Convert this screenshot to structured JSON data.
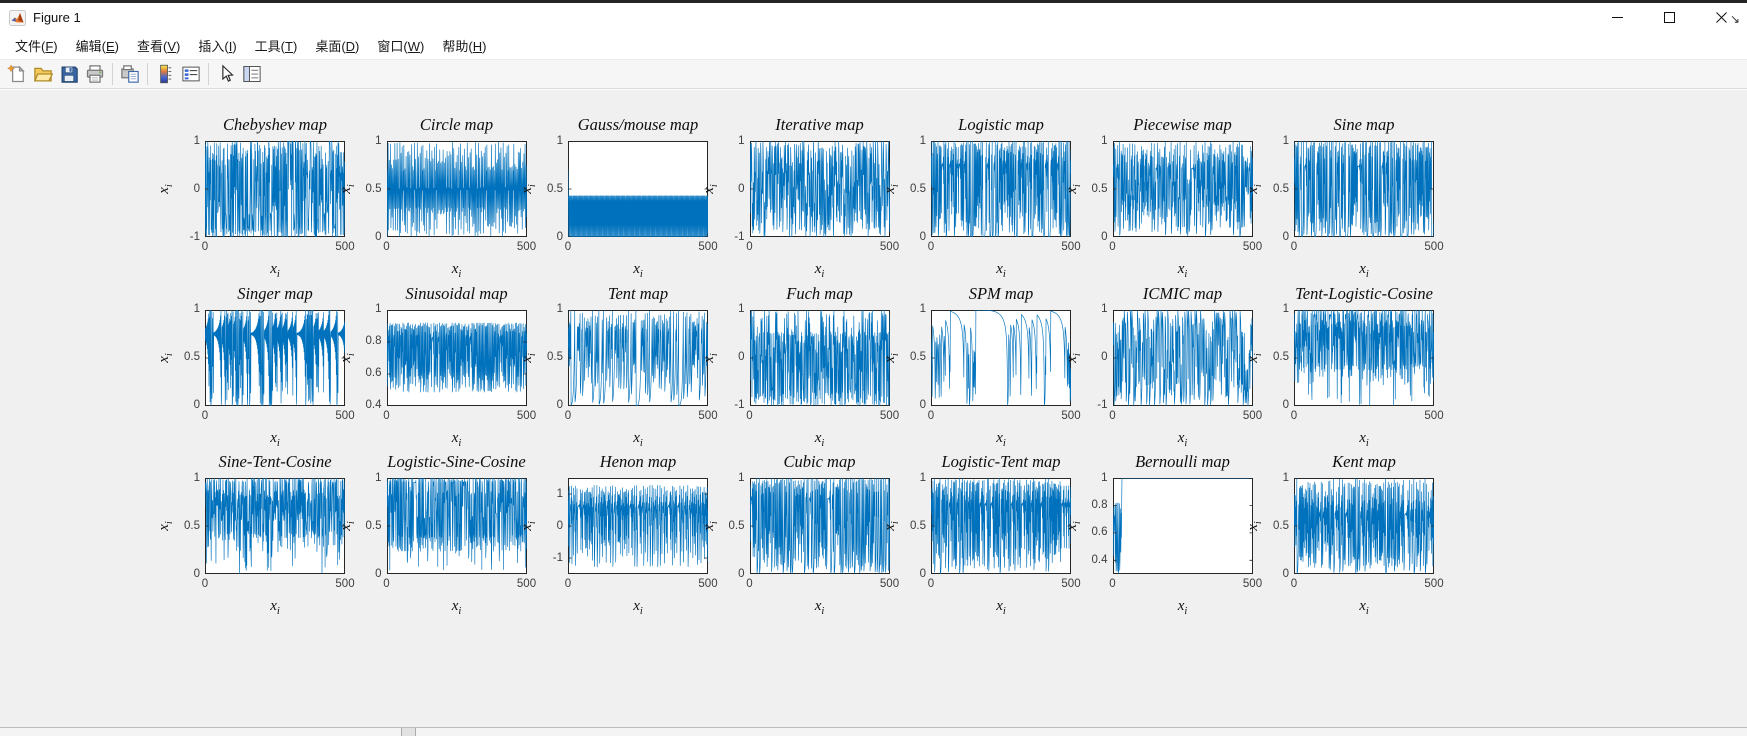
{
  "window": {
    "title": "Figure 1",
    "controls": {
      "minimize": "minimize",
      "maximize": "maximize",
      "close": "close"
    }
  },
  "menu_bar": {
    "items": [
      {
        "id": "file",
        "label": "文件",
        "shortcut": "F"
      },
      {
        "id": "edit",
        "label": "编辑",
        "shortcut": "E"
      },
      {
        "id": "view",
        "label": "查看",
        "shortcut": "V"
      },
      {
        "id": "insert",
        "label": "插入",
        "shortcut": "I"
      },
      {
        "id": "tools",
        "label": "工具",
        "shortcut": "T"
      },
      {
        "id": "desktop",
        "label": "桌面",
        "shortcut": "D"
      },
      {
        "id": "window",
        "label": "窗口",
        "shortcut": "W"
      },
      {
        "id": "help",
        "label": "帮助",
        "shortcut": "H"
      }
    ],
    "overflow_arrow": "↘"
  },
  "toolbar": {
    "groups": [
      [
        "new-figure",
        "open-file",
        "save-figure",
        "print-figure"
      ],
      [
        "print-preview"
      ],
      [
        "insert-colorbar",
        "insert-legend"
      ],
      [
        "edit-plot",
        "show-plot-tools"
      ]
    ]
  },
  "figure": {
    "background": "#f0f0f0",
    "axes_background": "#ffffff",
    "axes_color": "#262626",
    "tick_label_color": "#3d3d3d",
    "line_color": "#0072BD"
  },
  "chart_data": [
    {
      "type": "line",
      "title": "Chebyshev map",
      "x_label": "x_i",
      "y_label": "x_i",
      "xlim": [
        0,
        500
      ],
      "xticks": [
        0,
        500
      ],
      "ylim": [
        -1,
        1
      ],
      "yticks": [
        -1,
        0,
        1
      ],
      "series": {
        "color": "#0072BD",
        "n": 500,
        "generator": "chebyshev",
        "params": {
          "a": 4
        },
        "x0": 0.7
      }
    },
    {
      "type": "line",
      "title": "Circle map",
      "x_label": "x_i",
      "y_label": "x_i",
      "xlim": [
        0,
        500
      ],
      "xticks": [
        0,
        500
      ],
      "ylim": [
        0,
        1
      ],
      "yticks": [
        0,
        0.5,
        1
      ],
      "series": {
        "color": "#0072BD",
        "n": 500,
        "generator": "circle",
        "params": {
          "omega": 0.5,
          "k": 2
        },
        "x0": 0.7
      }
    },
    {
      "type": "line",
      "title": "Gauss/mouse map",
      "x_label": "x_i",
      "y_label": "x_i",
      "xlim": [
        0,
        500
      ],
      "xticks": [
        0,
        500
      ],
      "ylim": [
        0,
        1
      ],
      "yticks": [
        0,
        0.5,
        1
      ],
      "series": {
        "color": "#0072BD",
        "n": 500,
        "generator": "gauss",
        "params": {},
        "x0": 0.7
      }
    },
    {
      "type": "line",
      "title": "Iterative map",
      "x_label": "x_i",
      "y_label": "x_i",
      "xlim": [
        0,
        500
      ],
      "xticks": [
        0,
        500
      ],
      "ylim": [
        -1,
        1
      ],
      "yticks": [
        -1,
        0,
        1
      ],
      "series": {
        "color": "#0072BD",
        "n": 500,
        "generator": "iterative",
        "params": {
          "b": 0.7
        },
        "x0": 0.6
      }
    },
    {
      "type": "line",
      "title": "Logistic map",
      "x_label": "x_i",
      "y_label": "x_i",
      "xlim": [
        0,
        500
      ],
      "xticks": [
        0,
        500
      ],
      "ylim": [
        0,
        1
      ],
      "yticks": [
        0,
        0.5,
        1
      ],
      "series": {
        "color": "#0072BD",
        "n": 500,
        "generator": "logistic",
        "params": {
          "r": 4
        },
        "x0": 0.7
      }
    },
    {
      "type": "line",
      "title": "Piecewise map",
      "x_label": "x_i",
      "y_label": "x_i",
      "xlim": [
        0,
        500
      ],
      "xticks": [
        0,
        500
      ],
      "ylim": [
        0,
        1
      ],
      "yticks": [
        0,
        0.5,
        1
      ],
      "series": {
        "color": "#0072BD",
        "n": 500,
        "generator": "piecewise",
        "params": {
          "P": 0.4
        },
        "x0": 0.7
      }
    },
    {
      "type": "line",
      "title": "Sine map",
      "x_label": "x_i",
      "y_label": "x_i",
      "xlim": [
        0,
        500
      ],
      "xticks": [
        0,
        500
      ],
      "ylim": [
        0,
        1
      ],
      "yticks": [
        0,
        0.5,
        1
      ],
      "series": {
        "color": "#0072BD",
        "n": 500,
        "generator": "sine",
        "params": {},
        "x0": 0.7
      }
    },
    {
      "type": "line",
      "title": "Singer map",
      "x_label": "x_i",
      "y_label": "x_i",
      "xlim": [
        0,
        500
      ],
      "xticks": [
        0,
        500
      ],
      "ylim": [
        0,
        1
      ],
      "yticks": [
        0,
        0.5,
        1
      ],
      "series": {
        "color": "#0072BD",
        "n": 500,
        "generator": "singer",
        "params": {
          "mu": 1.073
        },
        "x0": 0.7
      }
    },
    {
      "type": "line",
      "title": "Sinusoidal map",
      "x_label": "x_i",
      "y_label": "x_i",
      "xlim": [
        0,
        500
      ],
      "xticks": [
        0,
        500
      ],
      "ylim": [
        0.4,
        1
      ],
      "yticks": [
        0.4,
        0.6,
        0.8,
        1
      ],
      "series": {
        "color": "#0072BD",
        "n": 500,
        "generator": "sinusoidal",
        "params": {
          "a": 2.3
        },
        "x0": 0.7
      }
    },
    {
      "type": "line",
      "title": "Tent map",
      "x_label": "x_i",
      "y_label": "x_i",
      "xlim": [
        0,
        500
      ],
      "xticks": [
        0,
        500
      ],
      "ylim": [
        0,
        1
      ],
      "yticks": [
        0,
        0.5,
        1
      ],
      "series": {
        "color": "#0072BD",
        "n": 500,
        "generator": "tent",
        "params": {
          "a": 0.7
        },
        "x0": 0.4
      }
    },
    {
      "type": "line",
      "title": "Fuch map",
      "x_label": "x_i",
      "y_label": "x_i",
      "xlim": [
        0,
        500
      ],
      "xticks": [
        0,
        500
      ],
      "ylim": [
        -1,
        1
      ],
      "yticks": [
        -1,
        0,
        1
      ],
      "series": {
        "color": "#0072BD",
        "n": 500,
        "generator": "fuch",
        "params": {},
        "x0": 0.7
      }
    },
    {
      "type": "line",
      "title": "SPM map",
      "x_label": "x_i",
      "y_label": "x_i",
      "xlim": [
        0,
        500
      ],
      "xticks": [
        0,
        500
      ],
      "ylim": [
        0,
        1
      ],
      "yticks": [
        0,
        0.5,
        1
      ],
      "series": {
        "color": "#0072BD",
        "n": 500,
        "generator": "spm",
        "params": {
          "mu": 0.3
        },
        "x0": 0.7
      }
    },
    {
      "type": "line",
      "title": "ICMIC map",
      "x_label": "x_i",
      "y_label": "x_i",
      "xlim": [
        0,
        500
      ],
      "xticks": [
        0,
        500
      ],
      "ylim": [
        -1,
        1
      ],
      "yticks": [
        -1,
        0,
        1
      ],
      "series": {
        "color": "#0072BD",
        "n": 500,
        "generator": "icmic",
        "params": {
          "a": 2
        },
        "x0": 0.7
      }
    },
    {
      "type": "line",
      "title": "Tent-Logistic-Cosine",
      "x_label": "x_i",
      "y_label": "x_i",
      "xlim": [
        0,
        500
      ],
      "xticks": [
        0,
        500
      ],
      "ylim": [
        0,
        1
      ],
      "yticks": [
        0,
        0.5,
        1
      ],
      "series": {
        "color": "#0072BD",
        "n": 500,
        "generator": "tlc",
        "params": {},
        "x0": 0.7
      }
    },
    {
      "type": "line",
      "title": "Sine-Tent-Cosine",
      "x_label": "x_i",
      "y_label": "x_i",
      "xlim": [
        0,
        500
      ],
      "xticks": [
        0,
        500
      ],
      "ylim": [
        0,
        1
      ],
      "yticks": [
        0,
        0.5,
        1
      ],
      "series": {
        "color": "#0072BD",
        "n": 500,
        "generator": "stc",
        "params": {},
        "x0": 0.7
      }
    },
    {
      "type": "line",
      "title": "Logistic-Sine-Cosine",
      "x_label": "x_i",
      "y_label": "x_i",
      "xlim": [
        0,
        500
      ],
      "xticks": [
        0,
        500
      ],
      "ylim": [
        0,
        1
      ],
      "yticks": [
        0,
        0.5,
        1
      ],
      "series": {
        "color": "#0072BD",
        "n": 500,
        "generator": "lsc",
        "params": {},
        "x0": 0.7
      }
    },
    {
      "type": "line",
      "title": "Henon map",
      "x_label": "x_i",
      "y_label": "x_i",
      "xlim": [
        0,
        500
      ],
      "xticks": [
        0,
        500
      ],
      "ylim": [
        -1.5,
        1.5
      ],
      "yticks": [
        -1,
        0,
        1
      ],
      "series": {
        "color": "#0072BD",
        "n": 500,
        "generator": "henon",
        "params": {
          "a": 1.4,
          "b": 0.3
        },
        "x0": 0.1
      }
    },
    {
      "type": "line",
      "title": "Cubic map",
      "x_label": "x_i",
      "y_label": "x_i",
      "xlim": [
        0,
        500
      ],
      "xticks": [
        0,
        500
      ],
      "ylim": [
        0,
        1
      ],
      "yticks": [
        0,
        0.5,
        1
      ],
      "series": {
        "color": "#0072BD",
        "n": 500,
        "generator": "cubic",
        "params": {
          "rho": 2.595
        },
        "x0": 0.7
      }
    },
    {
      "type": "line",
      "title": "Logistic-Tent map",
      "x_label": "x_i",
      "y_label": "x_i",
      "xlim": [
        0,
        500
      ],
      "xticks": [
        0,
        500
      ],
      "ylim": [
        0,
        1
      ],
      "yticks": [
        0,
        0.5,
        1
      ],
      "series": {
        "color": "#0072BD",
        "n": 500,
        "generator": "lt",
        "params": {
          "r": 3
        },
        "x0": 0.7
      }
    },
    {
      "type": "line",
      "title": "Bernoulli map",
      "x_label": "x_i",
      "y_label": "x_i",
      "xlim": [
        0,
        500
      ],
      "xticks": [
        0,
        500
      ],
      "ylim": [
        0.3,
        1
      ],
      "yticks": [
        0.4,
        0.6,
        0.8,
        1
      ],
      "series": {
        "color": "#0072BD",
        "n": 500,
        "generator": "bernoulli_collapse",
        "params": {
          "transient": 32,
          "settle": 1.0
        },
        "x0": 0.7
      }
    },
    {
      "type": "line",
      "title": "Kent map",
      "x_label": "x_i",
      "y_label": "x_i",
      "xlim": [
        0,
        500
      ],
      "xticks": [
        0,
        500
      ],
      "ylim": [
        0,
        1
      ],
      "yticks": [
        0,
        0.5,
        1
      ],
      "series": {
        "color": "#0072BD",
        "n": 500,
        "generator": "kent",
        "params": {
          "a": 0.4
        },
        "x0": 0.7
      }
    }
  ]
}
